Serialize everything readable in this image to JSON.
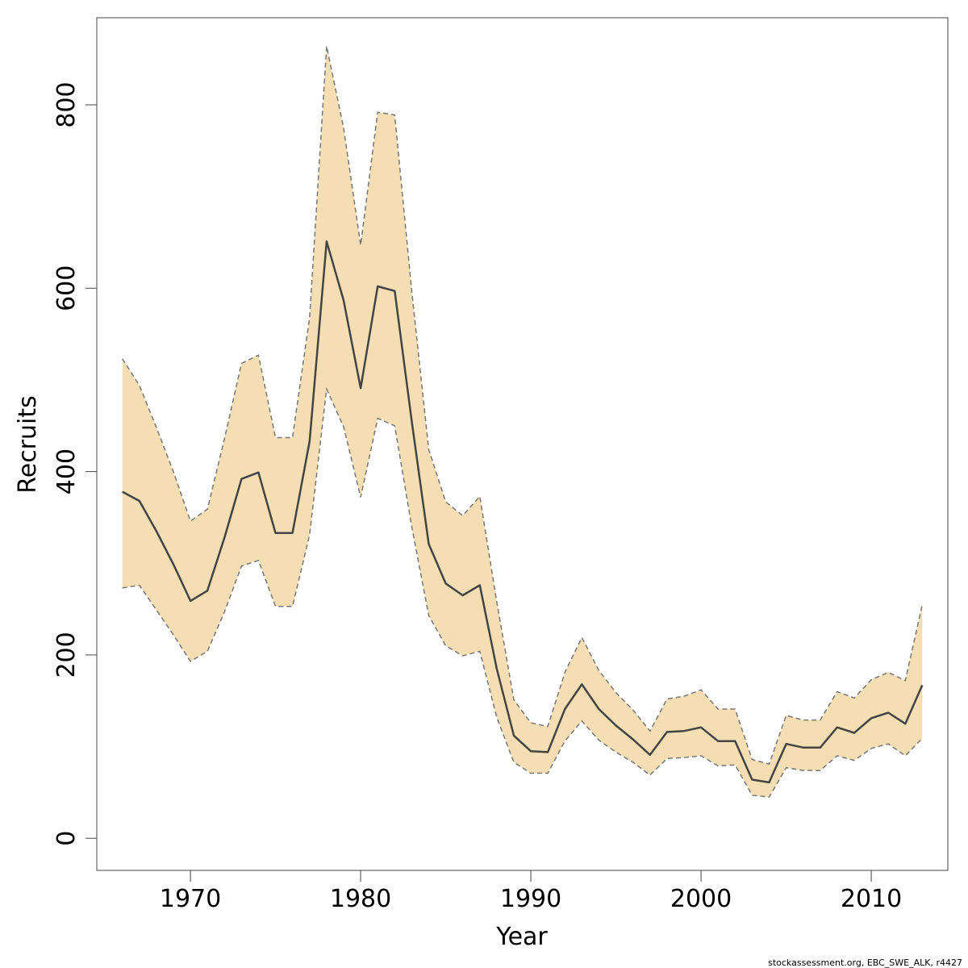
{
  "chart_data": {
    "type": "line",
    "xlabel": "Year",
    "ylabel": "Recruits",
    "xlim": [
      1964.5,
      2014.5
    ],
    "ylim": [
      -35,
      895
    ],
    "x_ticks": [
      1970,
      1980,
      1990,
      2000,
      2010
    ],
    "y_ticks": [
      0,
      200,
      400,
      600,
      800
    ],
    "x_tick_labels": [
      "1970",
      "1980",
      "1990",
      "2000",
      "2010"
    ],
    "y_tick_labels": [
      "0",
      "200",
      "400",
      "600",
      "800"
    ],
    "grid": false,
    "legend": "none",
    "years": [
      1966,
      1967,
      1968,
      1969,
      1970,
      1971,
      1972,
      1973,
      1974,
      1975,
      1976,
      1977,
      1978,
      1979,
      1980,
      1981,
      1982,
      1983,
      1984,
      1985,
      1986,
      1987,
      1988,
      1989,
      1990,
      1991,
      1992,
      1993,
      1994,
      1995,
      1996,
      1997,
      1998,
      1999,
      2000,
      2001,
      2002,
      2003,
      2004,
      2005,
      2006,
      2007,
      2008,
      2009,
      2010,
      2011,
      2012,
      2013
    ],
    "series": [
      {
        "role": "estimate",
        "values": [
          378,
          368,
          335,
          299,
          259,
          270,
          328,
          392,
          399,
          333,
          333,
          433,
          651,
          587,
          491,
          602,
          597,
          455,
          321,
          278,
          265,
          276,
          185,
          112,
          95,
          94,
          141,
          168,
          141,
          123,
          108,
          91,
          116,
          117,
          121,
          106,
          106,
          64,
          61,
          103,
          99,
          99,
          121,
          115,
          131,
          137,
          125,
          167
        ]
      },
      {
        "role": "upper",
        "values": [
          523,
          494,
          448,
          400,
          346,
          359,
          436,
          518,
          527,
          437,
          437,
          568,
          864,
          775,
          647,
          792,
          789,
          597,
          424,
          367,
          352,
          373,
          258,
          151,
          126,
          122,
          181,
          219,
          183,
          159,
          140,
          117,
          152,
          155,
          162,
          141,
          141,
          86,
          81,
          134,
          129,
          129,
          160,
          153,
          173,
          181,
          172,
          255
        ]
      },
      {
        "role": "lower",
        "values": [
          273,
          276,
          249,
          222,
          193,
          204,
          247,
          297,
          303,
          253,
          253,
          331,
          490,
          449,
          372,
          458,
          450,
          340,
          243,
          210,
          199,
          204,
          132,
          83,
          71,
          71,
          106,
          128,
          107,
          94,
          83,
          69,
          87,
          88,
          90,
          79,
          80,
          47,
          45,
          77,
          74,
          74,
          90,
          85,
          98,
          103,
          90,
          109
        ]
      }
    ],
    "colors": {
      "band_fill": "#f5deb3",
      "estimate_line": "#444444",
      "bound_line": "#777777",
      "axis": "#444444"
    }
  },
  "footer": {
    "credit": "stockassessment.org, EBC_SWE_ALK, r4427"
  }
}
